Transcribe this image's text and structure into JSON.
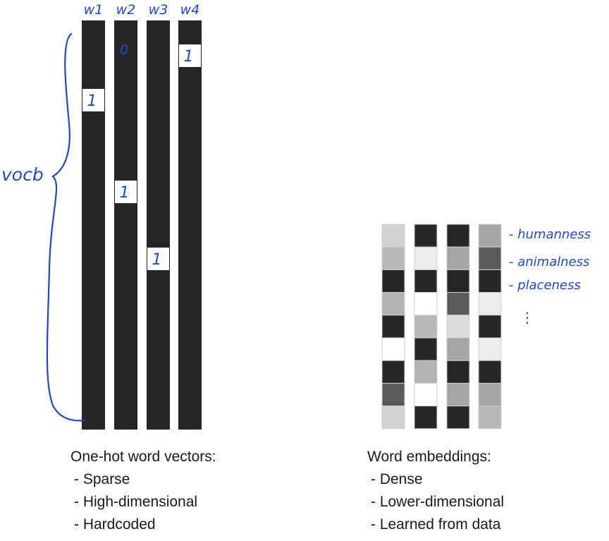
{
  "onehot": {
    "column_labels": [
      "w1",
      "w2",
      "w3",
      "w4"
    ],
    "hot_marks": [
      "1",
      "1",
      "1",
      "1"
    ],
    "zero_mark": "0",
    "vocab_label": "vocb"
  },
  "embeddings": {
    "row_labels": [
      "- humanness",
      "- animalness",
      "- placeness"
    ],
    "ellipsis": "⋮",
    "columns": [
      [
        "#d2d2d2",
        "#b8b8b8",
        "#262626",
        "#b3b3b3",
        "#262626",
        "#ffffff",
        "#262626",
        "#5a5a5a",
        "#d2d2d2"
      ],
      [
        "#262626",
        "#ececec",
        "#262626",
        "#ffffff",
        "#b8b8b8",
        "#262626",
        "#b3b3b3",
        "#ffffff",
        "#262626"
      ],
      [
        "#262626",
        "#a6a6a6",
        "#262626",
        "#5a5a5a",
        "#dcdcdc",
        "#a6a6a6",
        "#262626",
        "#a6a6a6",
        "#262626"
      ],
      [
        "#a6a6a6",
        "#5a5a5a",
        "#262626",
        "#ececec",
        "#262626",
        "#ececec",
        "#262626",
        "#a6a6a6",
        "#b8b8b8"
      ]
    ]
  },
  "captions": {
    "left": {
      "title": "One-hot word vectors:",
      "items": [
        "- Sparse",
        "- High-dimensional",
        "- Hardcoded"
      ]
    },
    "right": {
      "title": "Word embeddings:",
      "items": [
        "- Dense",
        "- Lower-dimensional",
        "- Learned from data"
      ]
    }
  },
  "colors": {
    "bar": "#262626",
    "ink": "#1f47d6",
    "border": "#d0d0d0"
  }
}
